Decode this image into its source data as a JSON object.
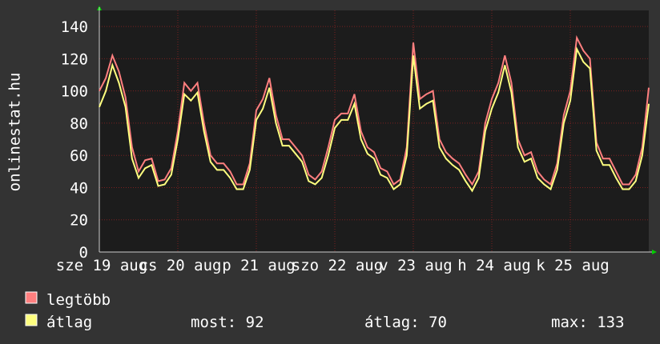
{
  "chart_data": {
    "type": "line",
    "y_label": "onlinestat.hu",
    "x": [
      0,
      2,
      4,
      6,
      8,
      10,
      12,
      14,
      16,
      18,
      20,
      22,
      24,
      26,
      28,
      30,
      32,
      34,
      36,
      38,
      40,
      42,
      44,
      46,
      48,
      50,
      52,
      54,
      56,
      58,
      60,
      62,
      64,
      66,
      68,
      70,
      72,
      74,
      76,
      78,
      80,
      82,
      84,
      86,
      88,
      90,
      92,
      94,
      96,
      98,
      100,
      102,
      104,
      106,
      108,
      110,
      112,
      114,
      116,
      118,
      120,
      122,
      124,
      126,
      128,
      130,
      132,
      134,
      136,
      138,
      140,
      142,
      144,
      146,
      148,
      150,
      152,
      154,
      156,
      158,
      160,
      162,
      164,
      166,
      168
    ],
    "xlim": [
      0,
      168
    ],
    "xticks": [
      {
        "value": 0,
        "label": "sze 19 aug"
      },
      {
        "value": 24,
        "label": "cs 20 aug"
      },
      {
        "value": 48,
        "label": "p 21 aug"
      },
      {
        "value": 72,
        "label": "szo 22 aug"
      },
      {
        "value": 96,
        "label": "v 23 aug"
      },
      {
        "value": 120,
        "label": "h 24 aug"
      },
      {
        "value": 144,
        "label": "k 25 aug"
      }
    ],
    "ylim": [
      0,
      150
    ],
    "yticks": [
      0,
      20,
      40,
      60,
      80,
      100,
      120,
      140
    ],
    "grid": true,
    "series": [
      {
        "name": "legtöbb",
        "color": "#ff7f7f",
        "values": [
          100,
          108,
          122,
          112,
          96,
          65,
          50,
          57,
          58,
          44,
          45,
          52,
          75,
          105,
          100,
          105,
          80,
          60,
          55,
          55,
          50,
          42,
          42,
          55,
          88,
          95,
          108,
          85,
          70,
          70,
          65,
          60,
          48,
          45,
          50,
          65,
          82,
          86,
          86,
          98,
          75,
          65,
          62,
          52,
          50,
          42,
          45,
          65,
          130,
          95,
          98,
          100,
          70,
          62,
          58,
          55,
          48,
          42,
          50,
          80,
          95,
          105,
          122,
          105,
          70,
          60,
          62,
          50,
          45,
          42,
          55,
          85,
          100,
          133,
          125,
          120,
          68,
          58,
          58,
          50,
          42,
          42,
          48,
          65,
          102
        ]
      },
      {
        "name": "átlag",
        "color": "#ffff7f",
        "values": [
          90,
          100,
          116,
          105,
          90,
          58,
          46,
          52,
          54,
          41,
          42,
          48,
          70,
          98,
          94,
          99,
          75,
          56,
          51,
          51,
          46,
          39,
          39,
          51,
          82,
          89,
          102,
          80,
          66,
          66,
          61,
          56,
          44,
          42,
          46,
          60,
          77,
          82,
          82,
          92,
          70,
          61,
          58,
          48,
          46,
          39,
          42,
          60,
          122,
          89,
          92,
          94,
          65,
          58,
          54,
          51,
          44,
          38,
          46,
          75,
          89,
          99,
          116,
          99,
          65,
          56,
          58,
          46,
          42,
          39,
          51,
          80,
          94,
          126,
          118,
          114,
          63,
          54,
          54,
          46,
          39,
          39,
          44,
          60,
          92
        ]
      }
    ],
    "stats": [
      "most: 92",
      "átlag: 70",
      "max: 133"
    ]
  }
}
